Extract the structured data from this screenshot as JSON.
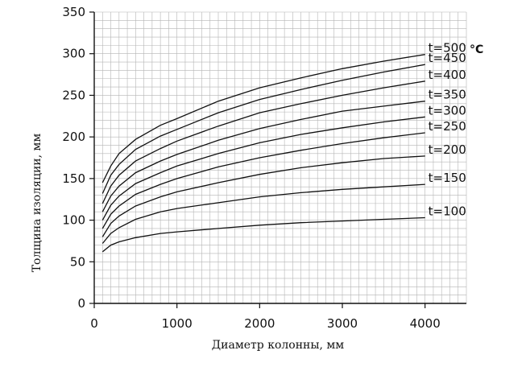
{
  "chart_data": {
    "type": "line",
    "xlabel": "Диаметр колонны, мм",
    "ylabel": "Толщина изоляции, мм",
    "xlim": [
      0,
      4500
    ],
    "ylim": [
      0,
      350
    ],
    "xticks": [
      0,
      1000,
      2000,
      3000,
      4000
    ],
    "xtick_labels": [
      "0",
      "1000",
      "2000",
      "3000",
      "4000"
    ],
    "yticks": [
      0,
      50,
      100,
      150,
      200,
      250,
      300,
      350
    ],
    "ytick_labels": [
      "0",
      "50",
      "100",
      "150",
      "200",
      "250",
      "300",
      "350"
    ],
    "minor_grid_x_step": 100,
    "minor_grid_y_step": 10,
    "grid": true,
    "unit_annotation": "°C",
    "x": [
      100,
      200,
      300,
      500,
      800,
      1000,
      1500,
      2000,
      2500,
      3000,
      3500,
      4000
    ],
    "series": [
      {
        "name": "t=500",
        "values": [
          145,
          165,
          180,
          197,
          214,
          222,
          243,
          259,
          271,
          282,
          291,
          299
        ]
      },
      {
        "name": "t=450",
        "values": [
          132,
          154,
          167,
          185,
          201,
          209,
          229,
          245,
          257,
          268,
          278,
          287
        ]
      },
      {
        "name": "t=400",
        "values": [
          120,
          141,
          154,
          171,
          186,
          195,
          213,
          229,
          240,
          250,
          259,
          267
        ]
      },
      {
        "name": "t=350",
        "values": [
          110,
          129,
          141,
          157,
          171,
          179,
          196,
          210,
          221,
          231,
          237,
          243
        ]
      },
      {
        "name": "t=300",
        "values": [
          100,
          118,
          129,
          144,
          157,
          165,
          180,
          193,
          203,
          211,
          218,
          224
        ]
      },
      {
        "name": "t=250",
        "values": [
          90,
          107,
          117,
          131,
          143,
          150,
          164,
          175,
          184,
          192,
          199,
          205
        ]
      },
      {
        "name": "t=200",
        "values": [
          80,
          96,
          105,
          117,
          128,
          134,
          145,
          155,
          163,
          169,
          174,
          177
        ]
      },
      {
        "name": "t=150",
        "values": [
          72,
          84,
          91,
          101,
          110,
          114,
          121,
          128,
          133,
          137,
          140,
          143
        ]
      },
      {
        "name": "t=100",
        "values": [
          62,
          70,
          74,
          79,
          84,
          86,
          90,
          94,
          97,
          99,
          101,
          103
        ]
      }
    ]
  }
}
